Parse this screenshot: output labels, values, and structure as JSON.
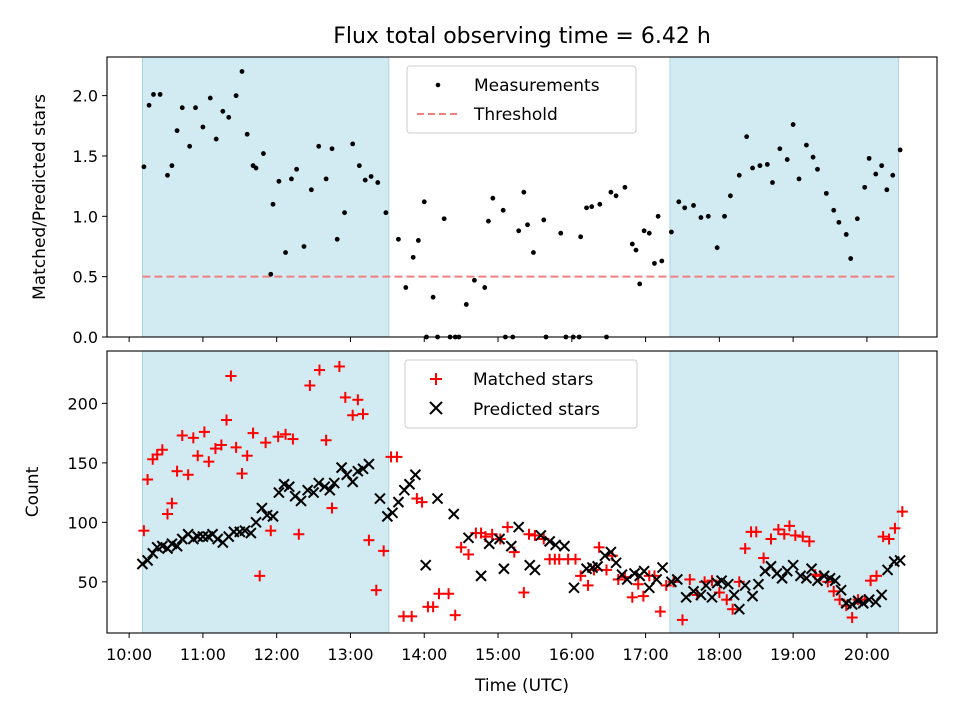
{
  "chart_data": [
    {
      "type": "scatter",
      "title": "Flux total observing time = 6.42 h",
      "ylabel": "Matched/Predicted stars",
      "xlabel": "",
      "xlim_hours": [
        9.7,
        20.95
      ],
      "ylim": [
        0,
        2.32
      ],
      "yticks": [
        0.0,
        0.5,
        1.0,
        1.5,
        2.0
      ],
      "ytick_labels": [
        "0.0",
        "0.5",
        "1.0",
        "1.5",
        "2.0"
      ],
      "shaded_intervals_hours": [
        [
          10.18,
          13.52
        ],
        [
          17.33,
          20.43
        ]
      ],
      "threshold": 0.5,
      "legend": {
        "placement": "top-center",
        "entries": [
          "Measurements",
          "Threshold"
        ]
      },
      "series": [
        {
          "name": "Measurements",
          "x": [
            10.2,
            10.27,
            10.33,
            10.42,
            10.52,
            10.58,
            10.65,
            10.72,
            10.82,
            10.9,
            11.0,
            11.1,
            11.18,
            11.27,
            11.35,
            11.45,
            11.53,
            11.6,
            11.68,
            11.72,
            11.82,
            11.92,
            11.95,
            12.03,
            12.12,
            12.2,
            12.27,
            12.37,
            12.47,
            12.57,
            12.67,
            12.75,
            12.82,
            12.92,
            13.03,
            13.12,
            13.2,
            13.28,
            13.37,
            13.48,
            13.65,
            13.75,
            13.85,
            13.92,
            14.0,
            14.03,
            14.12,
            14.18,
            14.27,
            14.35,
            14.42,
            14.47,
            14.57,
            14.68,
            14.82,
            14.87,
            14.93,
            15.07,
            15.1,
            15.2,
            15.28,
            15.35,
            15.4,
            15.48,
            15.62,
            15.65,
            15.85,
            15.92,
            16.02,
            16.1,
            16.12,
            16.2,
            16.27,
            16.38,
            16.47,
            16.53,
            16.6,
            16.72,
            16.82,
            16.87,
            16.92,
            16.98,
            17.05,
            17.12,
            17.17,
            17.22,
            17.35,
            17.45,
            17.53,
            17.65,
            17.75,
            17.85,
            17.97,
            18.07,
            18.15,
            18.27,
            18.37,
            18.45,
            18.55,
            18.65,
            18.72,
            18.82,
            18.92,
            19.0,
            19.08,
            19.18,
            19.27,
            19.33,
            19.45,
            19.55,
            19.62,
            19.72,
            19.78,
            19.87,
            19.97,
            20.03,
            20.12,
            20.2,
            20.27,
            20.35,
            20.45
          ],
          "y": [
            1.41,
            1.92,
            2.01,
            2.01,
            1.34,
            1.42,
            1.71,
            1.9,
            1.58,
            1.9,
            1.74,
            1.98,
            1.64,
            1.87,
            1.82,
            2.0,
            2.2,
            1.68,
            1.42,
            1.4,
            1.52,
            0.52,
            1.1,
            1.29,
            0.7,
            1.31,
            1.39,
            0.75,
            1.22,
            1.58,
            1.31,
            1.56,
            0.81,
            1.03,
            1.6,
            1.42,
            1.3,
            1.33,
            1.28,
            1.03,
            0.81,
            0.41,
            0.66,
            0.8,
            1.12,
            0.0,
            0.33,
            0.0,
            0.98,
            0.0,
            0.0,
            0.0,
            0.27,
            0.47,
            0.41,
            0.96,
            1.15,
            1.05,
            0.0,
            0.0,
            0.88,
            1.2,
            0.93,
            0.7,
            0.97,
            0.0,
            0.86,
            0.0,
            0.0,
            0.0,
            0.83,
            1.07,
            1.08,
            1.1,
            0.0,
            1.2,
            1.17,
            1.24,
            0.77,
            0.72,
            0.44,
            0.88,
            0.86,
            0.61,
            1.0,
            0.63,
            0.87,
            1.12,
            1.07,
            1.09,
            0.99,
            1.0,
            0.74,
            1.0,
            1.17,
            1.34,
            1.66,
            1.4,
            1.42,
            1.43,
            1.28,
            1.56,
            1.47,
            1.76,
            1.31,
            1.59,
            1.49,
            1.39,
            1.19,
            1.05,
            0.95,
            0.85,
            0.65,
            0.98,
            1.24,
            1.48,
            1.35,
            1.42,
            1.22,
            1.34,
            1.55
          ]
        },
        {
          "name": "Threshold",
          "y": 0.5,
          "style": "dashed",
          "color": "#f08080"
        }
      ],
      "colors": {
        "shade": "#add8e6",
        "measurement": "#000000",
        "threshold": "#f08080"
      }
    },
    {
      "type": "scatter",
      "title": "",
      "xlabel": "Time (UTC)",
      "ylabel": "Count",
      "xlim_hours": [
        9.7,
        20.95
      ],
      "ylim": [
        7,
        244
      ],
      "yticks": [
        50,
        100,
        150,
        200
      ],
      "ytick_labels": [
        "50",
        "100",
        "150",
        "200"
      ],
      "xticks_hours": [
        10,
        11,
        12,
        13,
        14,
        15,
        16,
        17,
        18,
        19,
        20
      ],
      "xtick_labels": [
        "10:00",
        "11:00",
        "12:00",
        "13:00",
        "14:00",
        "15:00",
        "16:00",
        "17:00",
        "18:00",
        "19:00",
        "20:00"
      ],
      "shaded_intervals_hours": [
        [
          10.18,
          13.52
        ],
        [
          17.33,
          20.43
        ]
      ],
      "legend": {
        "placement": "top-center",
        "entries": [
          "Matched stars",
          "Predicted stars"
        ]
      },
      "series": [
        {
          "name": "Matched stars",
          "marker": "+",
          "color": "#ff0000",
          "x": [
            10.2,
            10.25,
            10.32,
            10.38,
            10.45,
            10.52,
            10.58,
            10.65,
            10.72,
            10.8,
            10.87,
            10.93,
            11.02,
            11.08,
            11.17,
            11.25,
            11.32,
            11.38,
            11.45,
            11.53,
            11.6,
            11.68,
            11.77,
            11.85,
            11.92,
            12.02,
            12.12,
            12.22,
            12.3,
            12.45,
            12.58,
            12.67,
            12.75,
            12.85,
            12.93,
            13.03,
            13.1,
            13.17,
            13.25,
            13.35,
            13.45,
            13.55,
            13.63,
            13.72,
            13.83,
            13.9,
            13.97,
            14.05,
            14.12,
            14.2,
            14.33,
            14.42,
            14.5,
            14.6,
            14.7,
            14.77,
            14.83,
            14.92,
            15.03,
            15.13,
            15.22,
            15.35,
            15.42,
            15.5,
            15.62,
            15.7,
            15.77,
            15.83,
            15.95,
            16.05,
            16.12,
            16.22,
            16.3,
            16.37,
            16.47,
            16.55,
            16.63,
            16.72,
            16.82,
            16.9,
            16.97,
            17.05,
            17.12,
            17.2,
            17.28,
            17.38,
            17.5,
            17.6,
            17.7,
            17.8,
            17.9,
            18.0,
            18.1,
            18.18,
            18.27,
            18.35,
            18.43,
            18.5,
            18.6,
            18.7,
            18.8,
            18.88,
            18.95,
            19.03,
            19.13,
            19.22,
            19.3,
            19.37,
            19.47,
            19.55,
            19.63,
            19.72,
            19.8,
            19.88,
            19.97,
            20.05,
            20.13,
            20.22,
            20.3,
            20.38,
            20.48
          ],
          "y": [
            93,
            136,
            153,
            157,
            161,
            107,
            116,
            143,
            173,
            140,
            171,
            156,
            176,
            151,
            162,
            165,
            186,
            223,
            163,
            141,
            156,
            175,
            55,
            167,
            93,
            172,
            174,
            170,
            90,
            215,
            228,
            169,
            112,
            231,
            205,
            190,
            203,
            191,
            85,
            43,
            76,
            155,
            155,
            21,
            21,
            120,
            117,
            29,
            29,
            40,
            40,
            22,
            79,
            73,
            91,
            91,
            88,
            90,
            86,
            96,
            75,
            41,
            90,
            89,
            86,
            69,
            69,
            69,
            69,
            69,
            55,
            47,
            60,
            79,
            60,
            72,
            52,
            54,
            37,
            48,
            38,
            55,
            55,
            25,
            47,
            50,
            18,
            52,
            39,
            50,
            51,
            41,
            35,
            27,
            50,
            78,
            92,
            92,
            70,
            86,
            94,
            90,
            97,
            89,
            88,
            84,
            56,
            55,
            50,
            42,
            35,
            30,
            20,
            35,
            35,
            51,
            55,
            88,
            86,
            95,
            109
          ]
        },
        {
          "name": "Predicted stars",
          "marker": "x",
          "color": "#000000",
          "x": [
            10.18,
            10.25,
            10.32,
            10.38,
            10.45,
            10.52,
            10.58,
            10.65,
            10.72,
            10.8,
            10.87,
            10.93,
            11.0,
            11.07,
            11.13,
            11.2,
            11.27,
            11.35,
            11.42,
            11.5,
            11.57,
            11.65,
            11.72,
            11.8,
            11.87,
            11.95,
            12.03,
            12.1,
            12.17,
            12.25,
            12.33,
            12.42,
            12.5,
            12.57,
            12.65,
            12.72,
            12.78,
            12.88,
            12.95,
            13.03,
            13.1,
            13.17,
            13.25,
            13.4,
            13.5,
            13.57,
            13.65,
            13.73,
            13.8,
            13.88,
            14.02,
            14.18,
            14.4,
            14.6,
            14.77,
            14.88,
            15.02,
            15.08,
            15.18,
            15.28,
            15.43,
            15.5,
            15.58,
            15.7,
            15.78,
            15.9,
            16.03,
            16.2,
            16.28,
            16.35,
            16.45,
            16.53,
            16.6,
            16.68,
            16.75,
            16.85,
            16.92,
            16.98,
            17.05,
            17.15,
            17.23,
            17.35,
            17.43,
            17.55,
            17.65,
            17.75,
            17.82,
            17.9,
            17.97,
            18.03,
            18.12,
            18.2,
            18.27,
            18.35,
            18.45,
            18.53,
            18.62,
            18.7,
            18.78,
            18.85,
            18.92,
            19.0,
            19.1,
            19.18,
            19.25,
            19.33,
            19.42,
            19.5,
            19.57,
            19.65,
            19.72,
            19.8,
            19.88,
            19.95,
            20.03,
            20.12,
            20.2,
            20.28,
            20.37,
            20.45
          ],
          "y": [
            65,
            68,
            74,
            79,
            80,
            78,
            82,
            80,
            86,
            90,
            86,
            88,
            88,
            88,
            90,
            86,
            83,
            88,
            92,
            92,
            93,
            91,
            100,
            112,
            106,
            105,
            125,
            132,
            130,
            122,
            118,
            127,
            125,
            133,
            130,
            127,
            133,
            146,
            140,
            134,
            143,
            145,
            149,
            120,
            105,
            108,
            117,
            127,
            132,
            140,
            64,
            120,
            107,
            87,
            55,
            82,
            86,
            61,
            80,
            96,
            64,
            60,
            89,
            84,
            81,
            80,
            45,
            61,
            62,
            63,
            72,
            75,
            66,
            56,
            52,
            57,
            55,
            59,
            45,
            52,
            62,
            50,
            52,
            37,
            42,
            39,
            47,
            37,
            49,
            51,
            48,
            39,
            27,
            47,
            38,
            48,
            59,
            63,
            57,
            53,
            59,
            64,
            55,
            53,
            61,
            51,
            55,
            53,
            51,
            43,
            32,
            31,
            34,
            32,
            35,
            33,
            39,
            60,
            67,
            68
          ]
        }
      ],
      "colors": {
        "shade": "#add8e6",
        "matched": "#ff0000",
        "predicted": "#000000"
      }
    }
  ]
}
